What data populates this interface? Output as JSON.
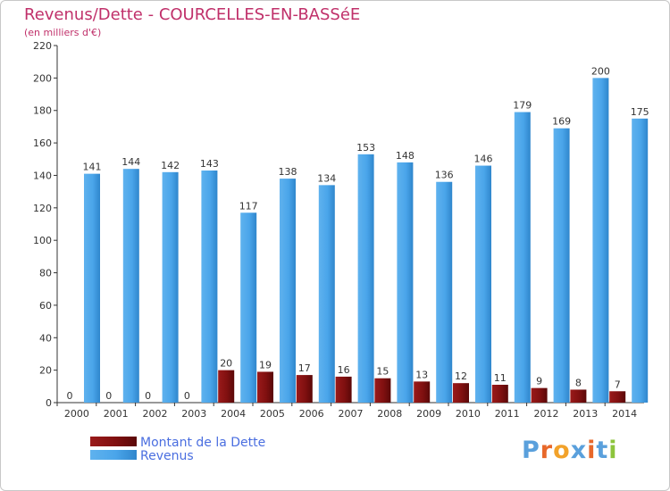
{
  "chart_data": {
    "type": "bar",
    "title": "Revenus/Dette - COURCELLES-EN-BASSéE",
    "subtitle": "(en milliers d'€)",
    "categories": [
      "2000",
      "2001",
      "2002",
      "2003",
      "2004",
      "2005",
      "2006",
      "2007",
      "2008",
      "2009",
      "2010",
      "2011",
      "2012",
      "2013",
      "2014"
    ],
    "series": [
      {
        "name": "Montant de la Dette",
        "color": "#7a0e0e",
        "values": [
          0,
          0,
          0,
          0,
          20,
          19,
          17,
          16,
          15,
          13,
          12,
          11,
          9,
          8,
          7
        ]
      },
      {
        "name": "Revenus",
        "color": "#3c9ae0",
        "values": [
          141,
          144,
          142,
          143,
          117,
          138,
          134,
          153,
          148,
          136,
          146,
          179,
          169,
          200,
          175
        ]
      }
    ],
    "ylim": [
      0,
      220
    ],
    "yticks": [
      0,
      20,
      40,
      60,
      80,
      100,
      120,
      140,
      160,
      180,
      200,
      220
    ],
    "grid": false,
    "legend": "bottom-left"
  },
  "watermark": {
    "text": "Proxiti",
    "colors": [
      "#5aa0dc",
      "#e8682a",
      "#f2a22a",
      "#5aa0dc",
      "#e8682a",
      "#5aa0dc",
      "#8cc43c"
    ]
  }
}
